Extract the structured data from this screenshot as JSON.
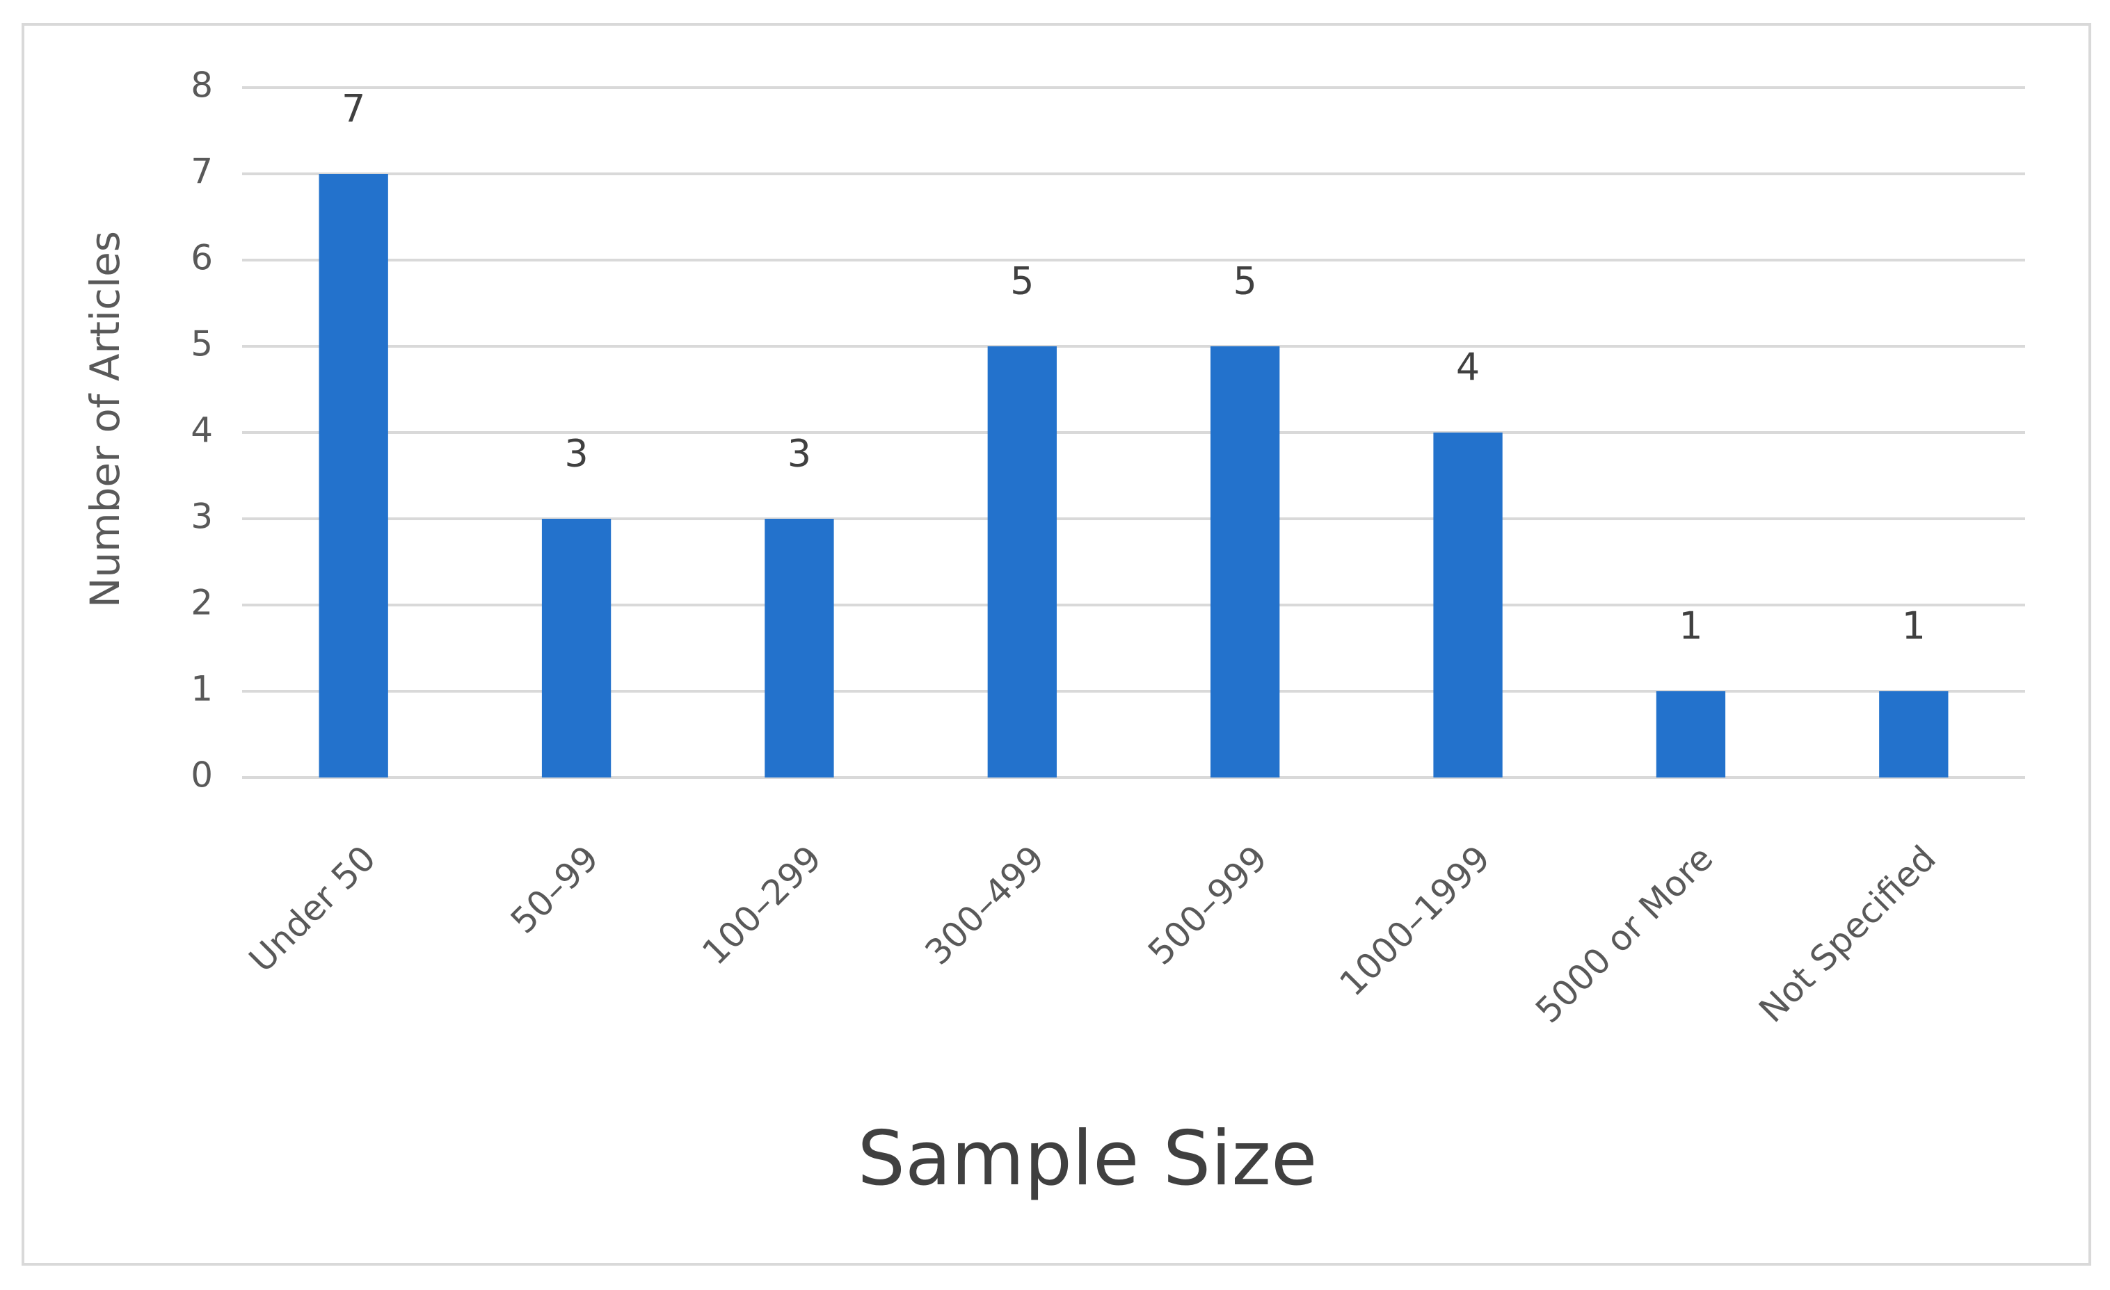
{
  "chart_data": {
    "type": "bar",
    "xlabel": "Sample Size",
    "ylabel": "Number of Articles",
    "categories": [
      "Under 50",
      "50–99",
      "100–299",
      "300–499",
      "500–999",
      "1000–1999",
      "5000 or More",
      "Not Specified"
    ],
    "values": [
      7,
      3,
      3,
      5,
      5,
      4,
      1,
      1
    ],
    "color": "#2372cc",
    "ylim": [
      0,
      8
    ],
    "yticks": [
      0,
      1,
      2,
      3,
      4,
      5,
      6,
      7,
      8
    ],
    "grid": true
  }
}
